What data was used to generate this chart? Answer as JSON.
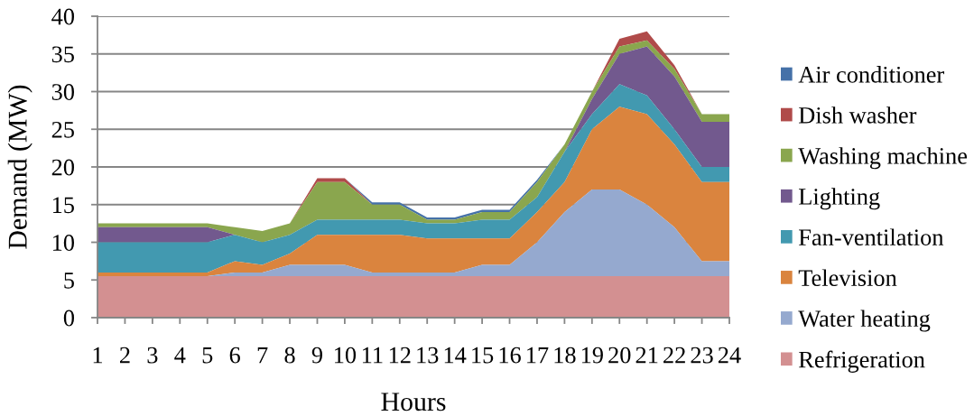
{
  "chart_data": {
    "type": "area",
    "stacked": true,
    "xlabel": "Hours",
    "ylabel": "Demand (MW)",
    "categories": [
      "1",
      "2",
      "3",
      "4",
      "5",
      "6",
      "7",
      "8",
      "9",
      "10",
      "11",
      "12",
      "13",
      "14",
      "15",
      "16",
      "17",
      "18",
      "19",
      "20",
      "21",
      "22",
      "23",
      "24"
    ],
    "series": [
      {
        "name": "Refrigeration",
        "color": "#d39091",
        "values": [
          5.5,
          5.5,
          5.5,
          5.5,
          5.5,
          5.5,
          5.5,
          5.5,
          5.5,
          5.5,
          5.5,
          5.5,
          5.5,
          5.5,
          5.5,
          5.5,
          5.5,
          5.5,
          5.5,
          5.5,
          5.5,
          5.5,
          5.5,
          5.5
        ]
      },
      {
        "name": "Water heating",
        "color": "#95a9cf",
        "values": [
          0,
          0,
          0,
          0,
          0,
          0.5,
          0.5,
          1.5,
          1.5,
          1.5,
          0.5,
          0.5,
          0.5,
          0.5,
          1.5,
          1.5,
          4.5,
          8.5,
          11.5,
          11.5,
          9.5,
          6.5,
          2,
          2
        ]
      },
      {
        "name": "Television",
        "color": "#da843e",
        "values": [
          0.5,
          0.5,
          0.5,
          0.5,
          0.5,
          1.5,
          1,
          1.5,
          4,
          4,
          5,
          5,
          4.5,
          4.5,
          3.5,
          3.5,
          4,
          4,
          8,
          11,
          12,
          11,
          10.5,
          10.5
        ]
      },
      {
        "name": "Fan-ventilation",
        "color": "#4299b0",
        "values": [
          4,
          4,
          4,
          4,
          4,
          3.5,
          3,
          2.5,
          2,
          2,
          2,
          2,
          2,
          2,
          2.5,
          2.5,
          2,
          4,
          2,
          3,
          2.5,
          2,
          2,
          2
        ]
      },
      {
        "name": "Lighting",
        "color": "#72598e",
        "values": [
          2,
          2,
          2,
          2,
          2,
          0,
          0,
          0,
          0,
          0,
          0,
          0,
          0,
          0,
          0,
          0,
          0,
          0,
          2,
          4,
          6.5,
          7,
          6,
          6
        ]
      },
      {
        "name": "Washing machine",
        "color": "#8aa64e",
        "values": [
          0.5,
          0.5,
          0.5,
          0.5,
          0.5,
          1,
          1.5,
          1.5,
          5,
          5,
          2,
          2,
          0.5,
          0.5,
          1,
          1,
          2,
          1,
          1,
          1,
          0.8,
          1,
          1,
          1
        ]
      },
      {
        "name": "Dish washer",
        "color": "#b04b4a",
        "values": [
          0,
          0,
          0,
          0,
          0,
          0,
          0,
          0,
          0.5,
          0.5,
          0,
          0,
          0,
          0,
          0,
          0,
          0,
          0,
          0,
          1,
          1.2,
          0.5,
          0,
          0
        ]
      },
      {
        "name": "Air conditioner",
        "color": "#4571a8",
        "values": [
          null,
          null,
          null,
          null,
          null,
          null,
          null,
          null,
          null,
          0,
          0.3,
          0.3,
          0.3,
          0.3,
          0.3,
          0.3,
          0.3,
          0,
          null,
          null,
          null,
          null,
          null,
          null
        ]
      }
    ],
    "ylim": [
      0,
      40
    ],
    "yticks": [
      0,
      5,
      10,
      15,
      20,
      25,
      30,
      35,
      40
    ],
    "grid": "y",
    "legend": "right"
  }
}
